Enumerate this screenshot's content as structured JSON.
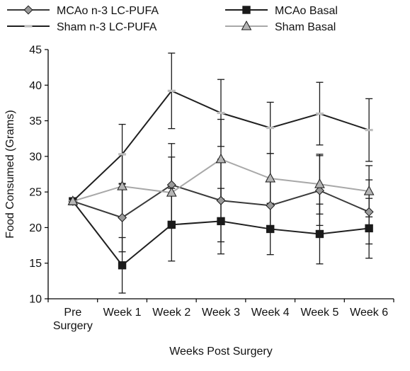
{
  "chart_data": {
    "type": "line",
    "title": "",
    "xlabel": "Weeks Post Surgery",
    "ylabel": "Food Consumed (Grams)",
    "ylim": [
      10,
      45
    ],
    "yticks": [
      10,
      15,
      20,
      25,
      30,
      35,
      40,
      45
    ],
    "categories": [
      [
        "Pre",
        "Surgery"
      ],
      [
        "Week 1"
      ],
      [
        "Week 2"
      ],
      [
        "Week 3"
      ],
      [
        "Week 4"
      ],
      [
        "Week 5"
      ],
      [
        "Week 6"
      ]
    ],
    "legend": {
      "position": "top",
      "columns": 2
    },
    "grid": false,
    "series": [
      {
        "name": "MCAo n-3 LC-PUFA",
        "color": "#3a3a3a",
        "marker": "diamond",
        "marker_fill": "#9a9a9a",
        "values": [
          23.7,
          21.4,
          26.0,
          23.8,
          23.1,
          25.2,
          22.2
        ],
        "error": [
          0,
          4.8,
          5.8,
          5.8,
          3.7,
          4.9,
          4.5
        ]
      },
      {
        "name": "MCAo Basal",
        "color": "#1f1f1f",
        "marker": "square",
        "marker_fill": "#1a1a1a",
        "values": [
          23.7,
          14.7,
          20.4,
          20.9,
          19.8,
          19.1,
          19.9
        ],
        "error": [
          0,
          3.9,
          5.1,
          4.6,
          3.6,
          4.2,
          4.2
        ]
      },
      {
        "name": "Sham n-3 LC-PUFA",
        "color": "#1f1f1f",
        "marker": "dash",
        "marker_fill": "#bdbdbd",
        "values": [
          23.7,
          30.3,
          39.2,
          36.1,
          34.0,
          36.0,
          33.7
        ],
        "error": [
          0,
          4.2,
          5.3,
          4.7,
          3.6,
          4.4,
          4.4
        ]
      },
      {
        "name": "Sham Basal",
        "color": "#a8a8a8",
        "marker": "triangle",
        "marker_fill": "#b5b5b5",
        "values": [
          23.7,
          25.8,
          24.9,
          29.6,
          26.9,
          26.1,
          25.1
        ],
        "error": [
          0,
          4.4,
          5.0,
          5.6,
          3.5,
          4.2,
          3.6
        ]
      }
    ]
  }
}
